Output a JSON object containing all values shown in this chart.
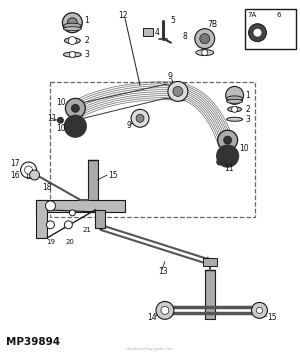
{
  "bg_color": "#f5f5f5",
  "fig_width": 3.0,
  "fig_height": 3.55,
  "dpi": 100,
  "part_label": "MP39894",
  "watermark_text": "rendered by jacks Inc.",
  "line_color": "#1a1a1a",
  "arm_color": "#555555",
  "fill_light": "#cccccc",
  "fill_dark": "#444444",
  "fill_mid": "#888888"
}
